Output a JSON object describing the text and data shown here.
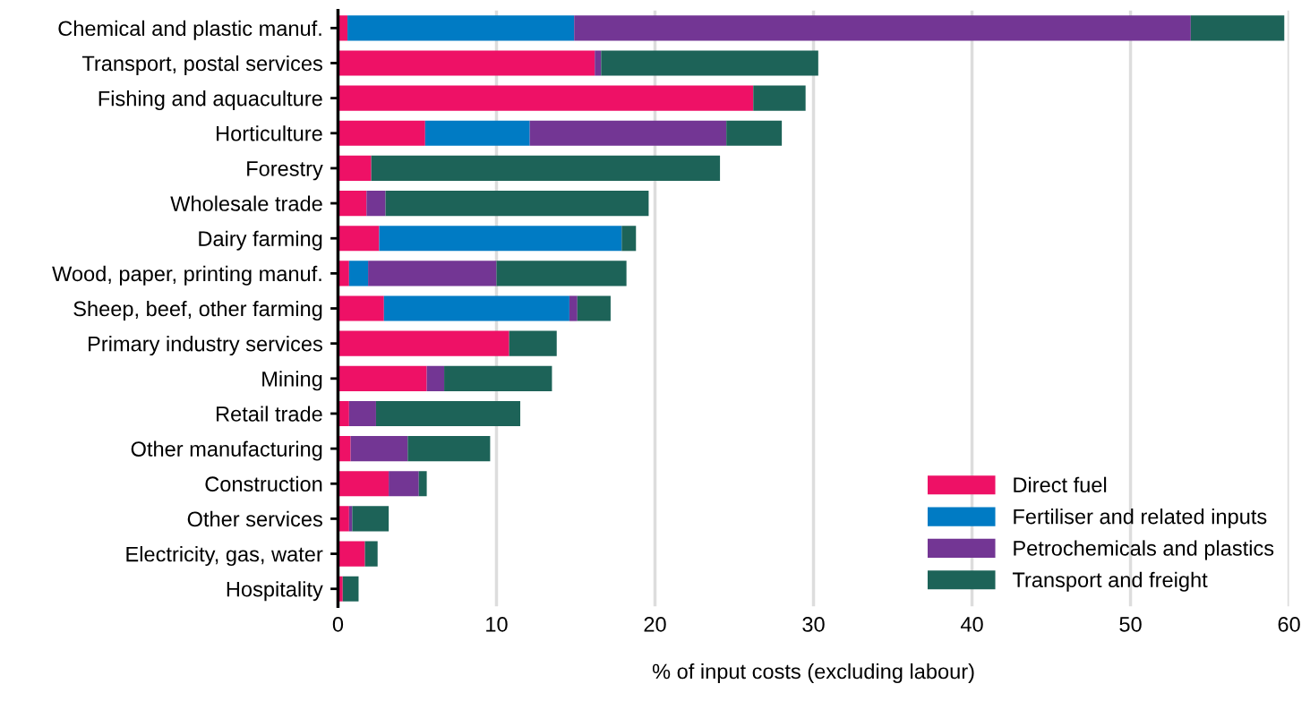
{
  "chart_data": {
    "type": "bar",
    "orientation": "horizontal",
    "stacked": true,
    "categories": [
      "Chemical and plastic manuf.",
      "Transport, postal services",
      "Fishing and aquaculture",
      "Horticulture",
      "Forestry",
      "Wholesale trade",
      "Dairy farming",
      "Wood, paper, printing manuf.",
      "Sheep, beef, other farming",
      "Primary industry services",
      "Mining",
      "Retail trade",
      "Other manufacturing",
      "Construction",
      "Other services",
      "Electricity, gas, water",
      "Hospitality"
    ],
    "series": [
      {
        "name": "Direct fuel",
        "color": "#ee1166",
        "values": [
          0.6,
          16.2,
          26.2,
          5.5,
          2.1,
          1.8,
          2.6,
          0.7,
          2.9,
          10.8,
          5.6,
          0.7,
          0.8,
          3.2,
          0.7,
          1.7,
          0.3
        ]
      },
      {
        "name": "Fertiliser and related inputs",
        "color": "#007bc4",
        "values": [
          14.3,
          0,
          0,
          6.6,
          0,
          0,
          15.3,
          1.2,
          11.7,
          0,
          0,
          0,
          0,
          0,
          0,
          0,
          0
        ]
      },
      {
        "name": "Petrochemicals and plastics",
        "color": "#733694",
        "values": [
          38.9,
          0.4,
          0,
          12.4,
          0,
          1.2,
          0,
          8.1,
          0.5,
          0,
          1.1,
          1.7,
          3.6,
          1.9,
          0.2,
          0,
          0
        ]
      },
      {
        "name": "Transport and freight",
        "color": "#1d6358",
        "values": [
          5.9,
          13.7,
          3.3,
          3.5,
          22.0,
          16.6,
          0.9,
          8.2,
          2.1,
          3.0,
          6.8,
          9.1,
          5.2,
          0.5,
          2.3,
          0.8,
          1.0
        ]
      }
    ],
    "xlabel": "% of input costs (excluding labour)",
    "xlim": [
      0,
      60
    ],
    "xticks": [
      0,
      10,
      20,
      30,
      40,
      50,
      60
    ],
    "grid": "x",
    "legend": "bottom right"
  }
}
